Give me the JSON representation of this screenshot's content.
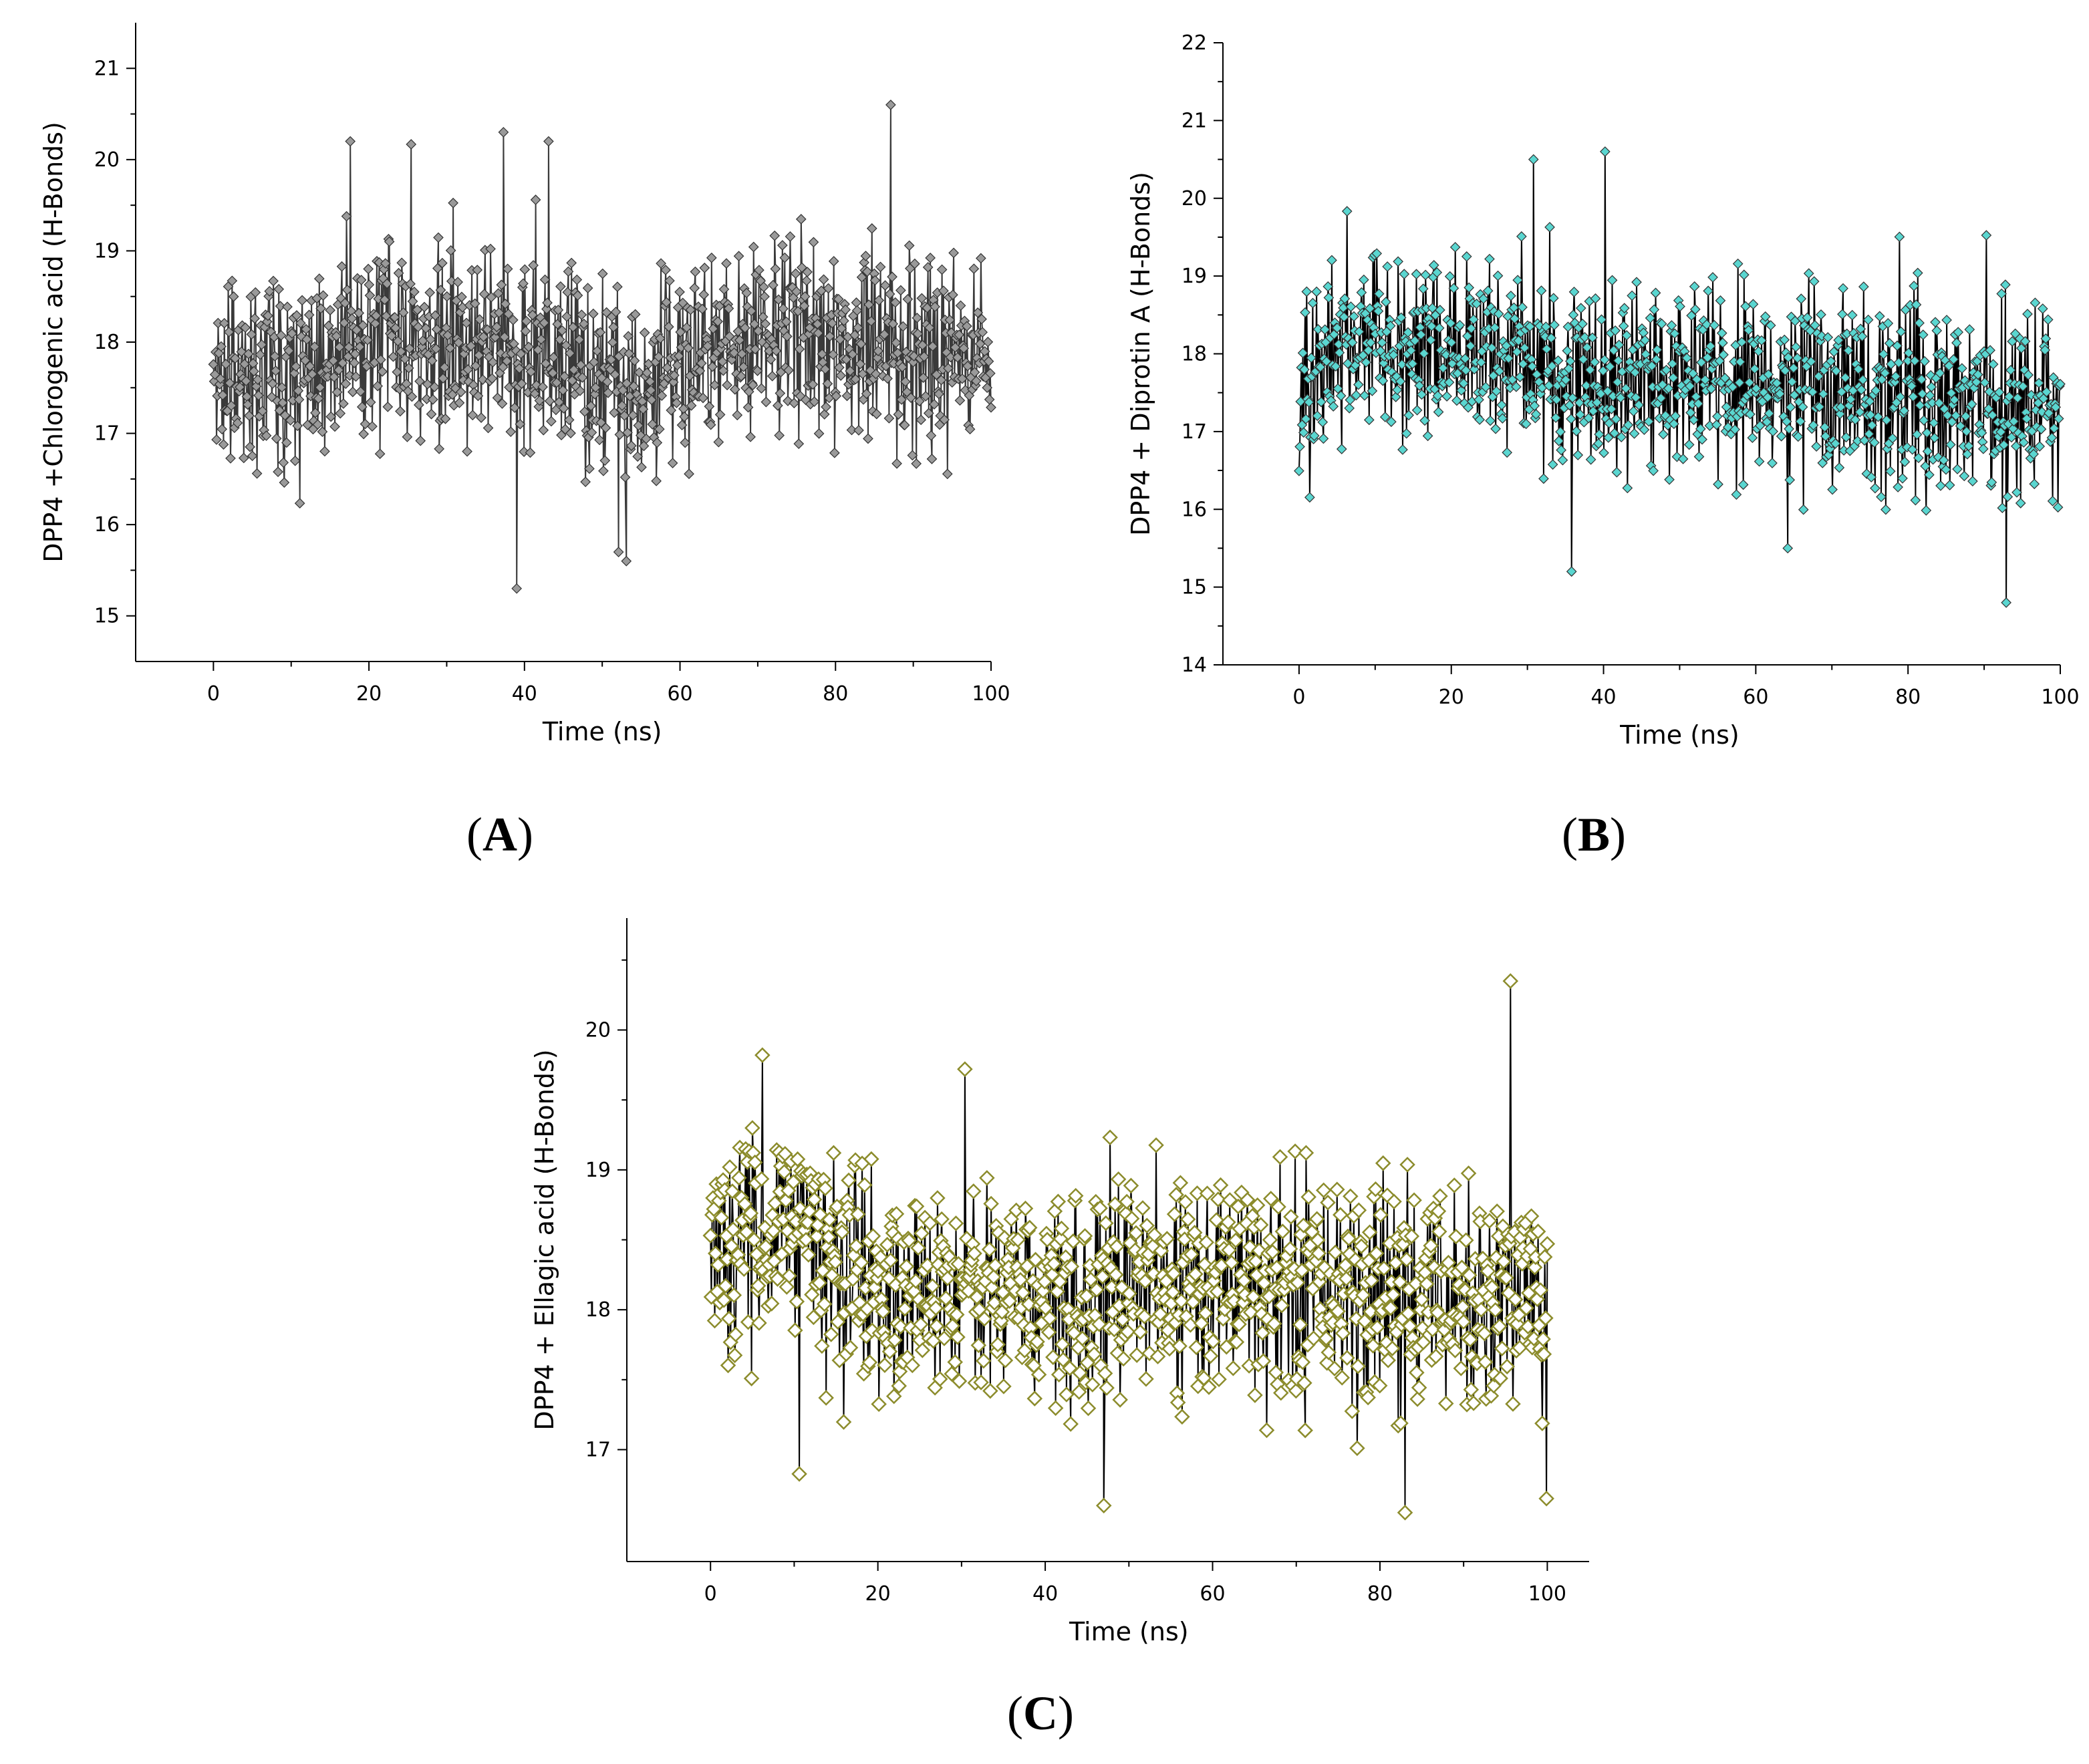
{
  "figure": {
    "panels": [
      "A",
      "B",
      "C"
    ]
  },
  "chart_data": [
    {
      "panel": "A",
      "type": "scatter",
      "style": "points connected by vertical drop lines",
      "series_name": "DPP4 +Chlorogenic acid",
      "marker": "diamond",
      "marker_color": "#9a9a9a",
      "line_color": "#3a3a3a",
      "xlabel": "Time (ns)",
      "ylabel": "DPP4 +Chlorogenic acid (H-Bonds)",
      "xlim": [
        -10,
        100
      ],
      "ylim": [
        14.5,
        21.5
      ],
      "xticks": [
        0,
        20,
        40,
        60,
        80,
        100
      ],
      "yticks": [
        15,
        16,
        17,
        18,
        19,
        20,
        21
      ],
      "n_points": 1000,
      "mean": 17.8,
      "spread": 0.55,
      "mean_trend": [
        [
          0,
          17.6
        ],
        [
          20,
          18.1
        ],
        [
          40,
          17.9
        ],
        [
          55,
          17.5
        ],
        [
          70,
          18.1
        ],
        [
          85,
          18.0
        ],
        [
          100,
          17.7
        ]
      ],
      "extremes": [
        {
          "x": 39.0,
          "y": 15.3
        },
        {
          "x": 87.1,
          "y": 20.6
        },
        {
          "x": 37.3,
          "y": 20.3
        },
        {
          "x": 17.6,
          "y": 20.2
        },
        {
          "x": 43.1,
          "y": 20.2
        },
        {
          "x": 52.1,
          "y": 15.7
        },
        {
          "x": 53.1,
          "y": 15.6
        }
      ]
    },
    {
      "panel": "B",
      "type": "scatter",
      "style": "points connected by vertical drop lines",
      "series_name": "DPP4 + Diprotin A",
      "marker": "diamond",
      "marker_color": "#5ad6d0",
      "line_color": "#000000",
      "xlabel": "Time (ns)",
      "ylabel": "DPP4 + Diprotin A (H-Bonds)",
      "xlim": [
        -10,
        100
      ],
      "ylim": [
        14,
        22
      ],
      "xticks": [
        0,
        20,
        40,
        60,
        80,
        100
      ],
      "yticks": [
        14,
        15,
        16,
        17,
        18,
        19,
        20,
        21,
        22
      ],
      "n_points": 1000,
      "mean": 17.7,
      "spread": 0.6,
      "mean_trend": [
        [
          0,
          17.3
        ],
        [
          5,
          18.2
        ],
        [
          30,
          17.9
        ],
        [
          60,
          17.6
        ],
        [
          80,
          17.4
        ],
        [
          100,
          17.2
        ]
      ],
      "extremes": [
        {
          "x": 40.2,
          "y": 20.6
        },
        {
          "x": 30.8,
          "y": 20.5
        },
        {
          "x": 35.8,
          "y": 15.2
        },
        {
          "x": 92.9,
          "y": 14.8
        },
        {
          "x": 64.2,
          "y": 15.5
        }
      ]
    },
    {
      "panel": "C",
      "type": "scatter",
      "style": "points connected by vertical drop lines",
      "series_name": "DPP4 + Ellagic acid",
      "marker": "diamond (hollow)",
      "marker_color": "#8c8c2c",
      "line_color": "#000000",
      "xlabel": "Time (ns)",
      "ylabel": "DPP4 + Ellagic acid (H-Bonds)",
      "xlim": [
        -10,
        105
      ],
      "ylim": [
        16.2,
        20.8
      ],
      "xticks": [
        0,
        20,
        40,
        60,
        80,
        100
      ],
      "yticks": [
        17,
        18,
        19,
        20
      ],
      "n_points": 1000,
      "mean": 18.2,
      "spread": 0.4,
      "mean_trend": [
        [
          0,
          18.5
        ],
        [
          10,
          18.5
        ],
        [
          20,
          18.1
        ],
        [
          50,
          18.2
        ],
        [
          80,
          18.1
        ],
        [
          100,
          18.1
        ]
      ],
      "extremes": [
        {
          "x": 95.6,
          "y": 20.35
        },
        {
          "x": 47.0,
          "y": 16.6
        },
        {
          "x": 83.0,
          "y": 16.55
        },
        {
          "x": 99.9,
          "y": 16.65
        },
        {
          "x": 6.2,
          "y": 19.82
        },
        {
          "x": 30.4,
          "y": 19.72
        }
      ]
    }
  ]
}
